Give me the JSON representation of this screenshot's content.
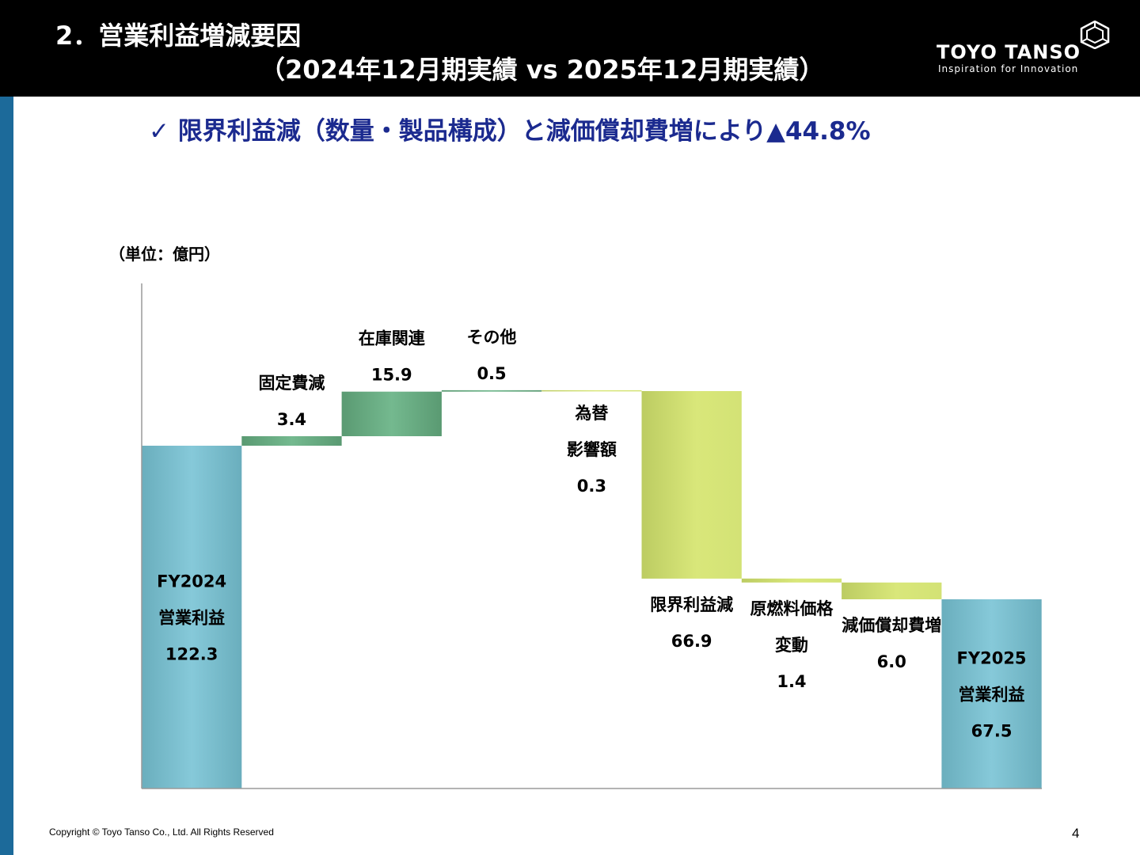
{
  "header": {
    "title_line1": "2．営業利益増減要因",
    "title_line2": "（2024年12月期実績 vs 2025年12月期実績）",
    "logo_name": "TOYO TANSO",
    "logo_tagline": "Inspiration for Innovation",
    "logo_icon": "hexagon-logo-icon"
  },
  "subtitle": "✓ 限界利益減（数量・製品構成）と減価償却費増により▲44.8%",
  "unit_label": "（単位：億円）",
  "footer": {
    "copyright": "Copyright © Toyo Tanso Co., Ltd. All Rights Reserved",
    "page_number": "4"
  },
  "colors": {
    "header_bg": "#000000",
    "left_accent": "#1c6a9a",
    "subtitle_text": "#1b2a8f",
    "total_bar": "#7fc2d2",
    "increase_bar": "#6aac86",
    "decrease_bar": "#d3e37a"
  },
  "chart_data": {
    "type": "waterfall",
    "ylim": [
      0,
      145
    ],
    "grid": false,
    "legend": "none",
    "steps": [
      {
        "label_lines": [
          "FY2024",
          "営業利益"
        ],
        "value": 122.3,
        "value_label": "122.3",
        "kind": "total"
      },
      {
        "label_lines": [
          "固定費減"
        ],
        "value": 3.4,
        "value_label": "3.4",
        "kind": "increase"
      },
      {
        "label_lines": [
          "在庫関連"
        ],
        "value": 15.9,
        "value_label": "15.9",
        "kind": "increase"
      },
      {
        "label_lines": [
          "その他"
        ],
        "value": 0.5,
        "value_label": "0.5",
        "kind": "increase"
      },
      {
        "label_lines": [
          "為替",
          "影響額"
        ],
        "value": -0.3,
        "value_label": "0.3",
        "kind": "decrease"
      },
      {
        "label_lines": [
          "限界利益減"
        ],
        "value": -66.9,
        "value_label": "66.9",
        "kind": "decrease"
      },
      {
        "label_lines": [
          "原燃料価格",
          "変動"
        ],
        "value": -1.4,
        "value_label": "1.4",
        "kind": "decrease"
      },
      {
        "label_lines": [
          "減価償却費増"
        ],
        "value": -6.0,
        "value_label": "6.0",
        "kind": "decrease"
      },
      {
        "label_lines": [
          "FY2025",
          "営業利益"
        ],
        "value": 67.5,
        "value_label": "67.5",
        "kind": "total"
      }
    ]
  }
}
